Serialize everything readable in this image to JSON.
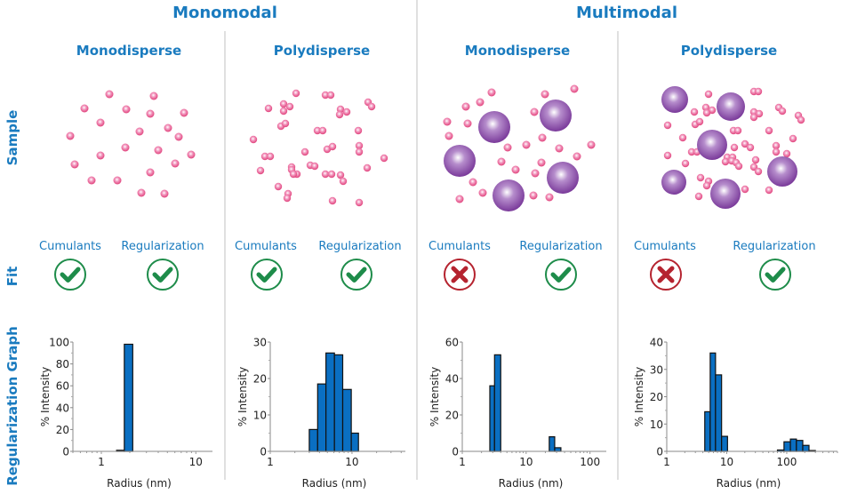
{
  "groups": [
    {
      "title": "Monomodal"
    },
    {
      "title": "Multimodal"
    }
  ],
  "columns": [
    {
      "title": "Monodisperse"
    },
    {
      "title": "Polydisperse"
    },
    {
      "title": "Monodisperse"
    },
    {
      "title": "Polydisperse"
    }
  ],
  "row_labels": {
    "sample": "Sample",
    "fit": "Fit",
    "graph": "Regularization Graph"
  },
  "fit": [
    {
      "cumulants_label": "Cumulants",
      "cumulants_status": "check-icon",
      "regularization_label": "Regularization",
      "regularization_status": "check-icon"
    },
    {
      "cumulants_label": "Cumulants",
      "cumulants_status": "check-icon",
      "regularization_label": "Regularization",
      "regularization_status": "check-icon"
    },
    {
      "cumulants_label": "Cumulants",
      "cumulants_status": "cross-icon",
      "regularization_label": "Regularization",
      "regularization_status": "check-icon"
    },
    {
      "cumulants_label": "Cumulants",
      "cumulants_status": "cross-icon",
      "regularization_label": "Regularization",
      "regularization_status": "check-icon"
    }
  ],
  "colors": {
    "accent_blue": "#1a7bbf",
    "bar_fill": "#0a6fc2",
    "check_green": "#1e8c4a",
    "cross_red": "#b5232f",
    "small_particle": "#e0407a",
    "large_particle": "#7a3a9a"
  },
  "chart_data": [
    {
      "type": "bar",
      "title": "",
      "xlabel": "Radius (nm)",
      "ylabel": "% Intensity",
      "xscale": "log",
      "xlim": [
        0.5,
        15
      ],
      "ylim": [
        0,
        100
      ],
      "yticks": [
        0,
        20,
        40,
        60,
        80,
        100
      ],
      "xticks": [
        1,
        10
      ],
      "bins": [
        {
          "x0": 1.45,
          "x1": 1.75,
          "value": 1
        },
        {
          "x0": 1.75,
          "x1": 2.15,
          "value": 98
        }
      ]
    },
    {
      "type": "bar",
      "title": "",
      "xlabel": "Radius (nm)",
      "ylabel": "% Intensity",
      "xscale": "log",
      "xlim": [
        1,
        45
      ],
      "ylim": [
        0,
        30
      ],
      "yticks": [
        0,
        10,
        20,
        30
      ],
      "xticks": [
        1,
        10
      ],
      "bins": [
        {
          "x0": 3.0,
          "x1": 3.8,
          "value": 6
        },
        {
          "x0": 3.8,
          "x1": 4.8,
          "value": 18.5
        },
        {
          "x0": 4.8,
          "x1": 6.1,
          "value": 27
        },
        {
          "x0": 6.1,
          "x1": 7.7,
          "value": 26.5
        },
        {
          "x0": 7.7,
          "x1": 9.8,
          "value": 17
        },
        {
          "x0": 9.8,
          "x1": 12.0,
          "value": 5
        }
      ]
    },
    {
      "type": "bar",
      "title": "",
      "xlabel": "Radius (nm)",
      "ylabel": "% Intensity",
      "xscale": "log",
      "xlim": [
        1,
        180
      ],
      "ylim": [
        0,
        60
      ],
      "yticks": [
        0,
        20,
        40,
        60
      ],
      "xticks": [
        1,
        10,
        100
      ],
      "bins": [
        {
          "x0": 2.7,
          "x1": 3.2,
          "value": 36
        },
        {
          "x0": 3.2,
          "x1": 4.0,
          "value": 53
        },
        {
          "x0": 23,
          "x1": 28,
          "value": 8
        },
        {
          "x0": 28,
          "x1": 35,
          "value": 2
        }
      ]
    },
    {
      "type": "bar",
      "title": "",
      "xlabel": "Radius (nm)",
      "ylabel": "% Intensity",
      "xscale": "log",
      "xlim": [
        1,
        700
      ],
      "ylim": [
        0,
        40
      ],
      "yticks": [
        0,
        10,
        20,
        30,
        40
      ],
      "xticks": [
        1,
        10,
        100
      ],
      "bins": [
        {
          "x0": 4.3,
          "x1": 5.3,
          "value": 14.5
        },
        {
          "x0": 5.3,
          "x1": 6.5,
          "value": 36
        },
        {
          "x0": 6.5,
          "x1": 8.2,
          "value": 28
        },
        {
          "x0": 8.2,
          "x1": 10.3,
          "value": 5.5
        },
        {
          "x0": 70,
          "x1": 90,
          "value": 0.5
        },
        {
          "x0": 90,
          "x1": 115,
          "value": 3.5
        },
        {
          "x0": 115,
          "x1": 145,
          "value": 4.5
        },
        {
          "x0": 145,
          "x1": 185,
          "value": 4
        },
        {
          "x0": 185,
          "x1": 235,
          "value": 2.2
        },
        {
          "x0": 235,
          "x1": 300,
          "value": 0.3
        }
      ]
    }
  ]
}
